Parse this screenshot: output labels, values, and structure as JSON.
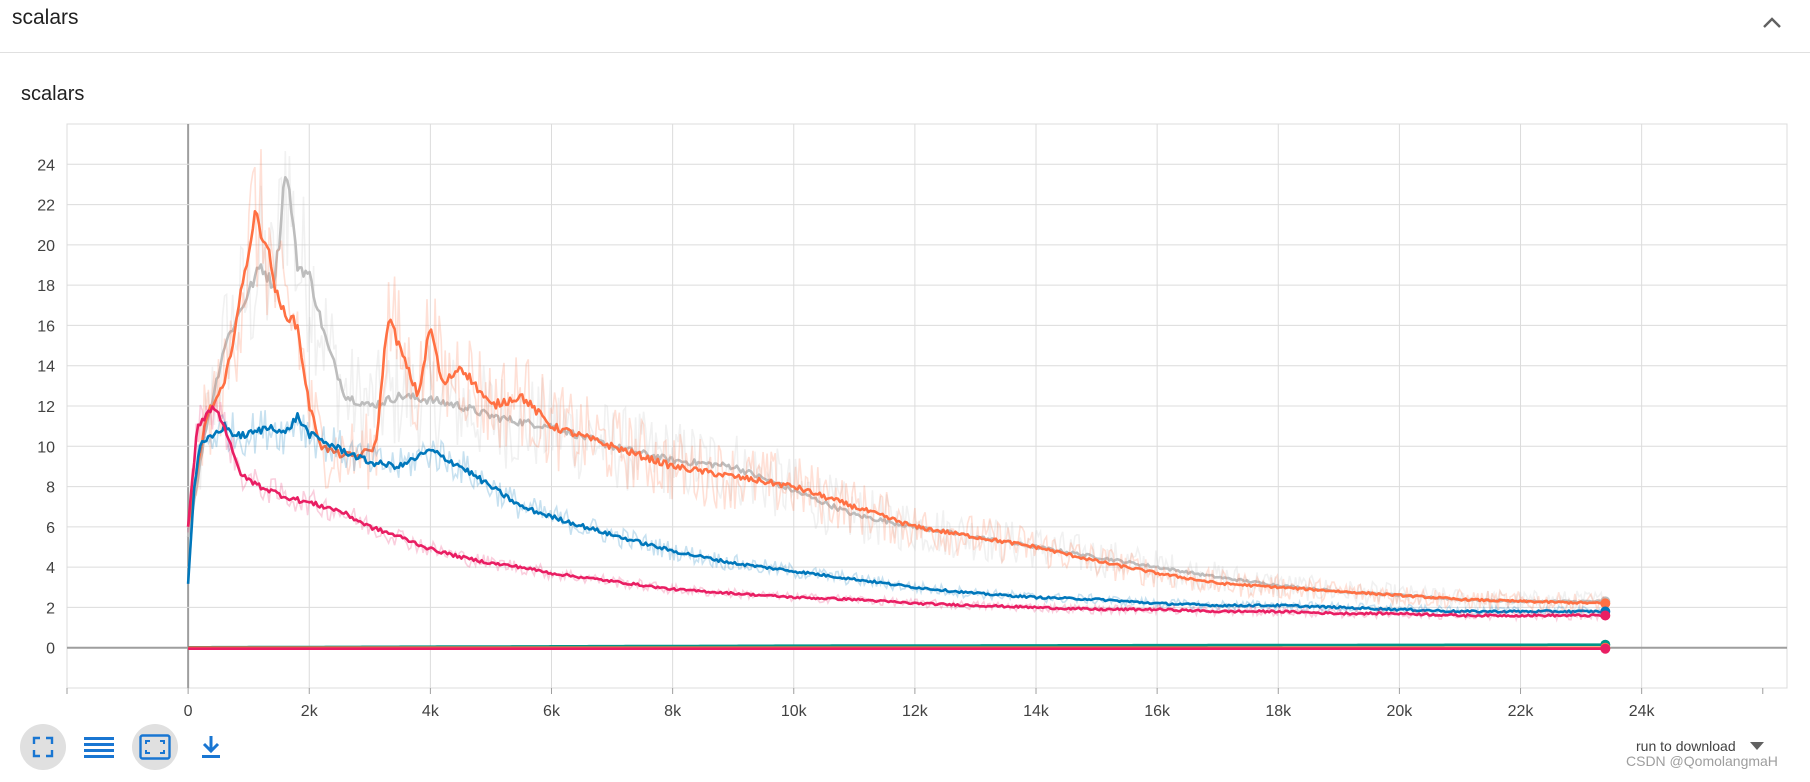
{
  "section": {
    "title": "scalars"
  },
  "card": {
    "title": "scalars"
  },
  "toolbar": {
    "fit_icon": "fullscreen-icon",
    "legend_icon": "list-lines-icon",
    "fit_domain_icon": "fit-to-domain-icon",
    "download_icon": "download-icon"
  },
  "run_download": {
    "label": "run to download"
  },
  "watermark": "CSDN @QomolangmaH",
  "chart_data": {
    "type": "line",
    "xlim": [
      -2000,
      26400
    ],
    "ylim": [
      -2,
      26
    ],
    "x_ticks": [
      "0",
      "2k",
      "4k",
      "6k",
      "8k",
      "10k",
      "12k",
      "14k",
      "16k",
      "18k",
      "20k",
      "22k",
      "24k"
    ],
    "x_tick_values": [
      0,
      2000,
      4000,
      6000,
      8000,
      10000,
      12000,
      14000,
      16000,
      18000,
      20000,
      22000,
      24000
    ],
    "y_ticks": [
      "0",
      "2",
      "4",
      "6",
      "8",
      "10",
      "12",
      "14",
      "16",
      "18",
      "20",
      "22",
      "24"
    ],
    "y_tick_values": [
      0,
      2,
      4,
      6,
      8,
      10,
      12,
      14,
      16,
      18,
      20,
      22,
      24
    ],
    "grid": true,
    "series": [
      {
        "color": "#bdbdbd",
        "noise": 2.2,
        "x": [
          0,
          300,
          600,
          900,
          1200,
          1400,
          1500,
          1600,
          1700,
          1800,
          2000,
          2300,
          2600,
          3000,
          3500,
          4000,
          4500,
          5000,
          5500,
          6000,
          7000,
          8000,
          9000,
          10000,
          11000,
          12000,
          13000,
          14000,
          15000,
          16000,
          17000,
          18000,
          19000,
          20000,
          21000,
          22000,
          23400
        ],
        "y": [
          5.5,
          11,
          15,
          17,
          19,
          18,
          20,
          23.8,
          22,
          19,
          18.5,
          15,
          12.5,
          12,
          12.5,
          12.3,
          12,
          11.5,
          11.2,
          11,
          10,
          9.3,
          9,
          7.8,
          6.6,
          6,
          5.5,
          5,
          4.5,
          4,
          3.5,
          3.1,
          2.8,
          2.6,
          2.4,
          2.3,
          2.3
        ]
      },
      {
        "color": "#ff7043",
        "noise": 2.0,
        "x": [
          0,
          300,
          600,
          900,
          1100,
          1300,
          1500,
          1800,
          2000,
          2200,
          2500,
          2800,
          3100,
          3300,
          3600,
          3800,
          4000,
          4200,
          4500,
          5000,
          5500,
          6000,
          6500,
          7000,
          8000,
          9000,
          10000,
          11000,
          12000,
          13000,
          14000,
          15000,
          16000,
          17000,
          18000,
          19000,
          20000,
          21000,
          22000,
          23400
        ],
        "y": [
          6,
          11.5,
          13,
          18,
          21.5,
          20,
          17,
          16,
          12,
          10,
          9.6,
          9.5,
          10,
          16.5,
          14,
          12.5,
          16,
          13,
          14,
          12,
          12.5,
          11,
          10.5,
          10,
          9,
          8.5,
          8,
          7,
          6,
          5.5,
          5,
          4.3,
          3.7,
          3.2,
          3,
          2.8,
          2.6,
          2.4,
          2.3,
          2.2
        ]
      },
      {
        "color": "#0077bb",
        "noise": 1.0,
        "x": [
          0,
          100,
          200,
          400,
          600,
          800,
          1000,
          1400,
          1600,
          1800,
          2000,
          2400,
          3000,
          3500,
          4000,
          4500,
          5000,
          5500,
          6000,
          7000,
          8000,
          9000,
          10000,
          11000,
          12000,
          13000,
          14000,
          15000,
          16000,
          17000,
          18000,
          19000,
          20000,
          21000,
          22000,
          23400
        ],
        "y": [
          3.2,
          8,
          10,
          10.5,
          11,
          10.5,
          10.6,
          11,
          10.6,
          11.5,
          10.6,
          10,
          9.2,
          9,
          9.8,
          9,
          8,
          7,
          6.5,
          5.6,
          4.8,
          4.2,
          3.8,
          3.4,
          3,
          2.7,
          2.5,
          2.4,
          2.2,
          2.1,
          2.1,
          2,
          1.9,
          1.8,
          1.8,
          1.8
        ]
      },
      {
        "color": "#e91e63",
        "noise": 0.9,
        "x": [
          0,
          150,
          300,
          450,
          600,
          750,
          900,
          1200,
          1600,
          2000,
          2500,
          3000,
          3500,
          4000,
          4500,
          5000,
          5500,
          6000,
          7000,
          8000,
          9000,
          10000,
          11000,
          12000,
          13000,
          14000,
          15000,
          16000,
          17000,
          18000,
          19000,
          20000,
          21000,
          22000,
          23400
        ],
        "y": [
          6,
          11,
          11.6,
          12,
          11,
          9.5,
          8.5,
          8,
          7.5,
          7.2,
          6.8,
          6,
          5.5,
          4.9,
          4.5,
          4.2,
          4,
          3.7,
          3.3,
          2.9,
          2.7,
          2.5,
          2.4,
          2.2,
          2.1,
          2,
          1.9,
          1.9,
          1.8,
          1.8,
          1.7,
          1.7,
          1.6,
          1.6,
          1.6
        ]
      },
      {
        "color": "#009688",
        "noise": 0.0,
        "x": [
          0,
          5000,
          10000,
          15000,
          20000,
          23400
        ],
        "y": [
          0.02,
          0.06,
          0.1,
          0.12,
          0.14,
          0.15
        ]
      },
      {
        "color": "#ff7043",
        "noise": 0.0,
        "x": [
          0,
          23400
        ],
        "y": [
          0.0,
          0.0
        ]
      },
      {
        "color": "#e91e63",
        "noise": 0.0,
        "x": [
          0,
          23400
        ],
        "y": [
          -0.05,
          -0.05
        ]
      }
    ]
  }
}
